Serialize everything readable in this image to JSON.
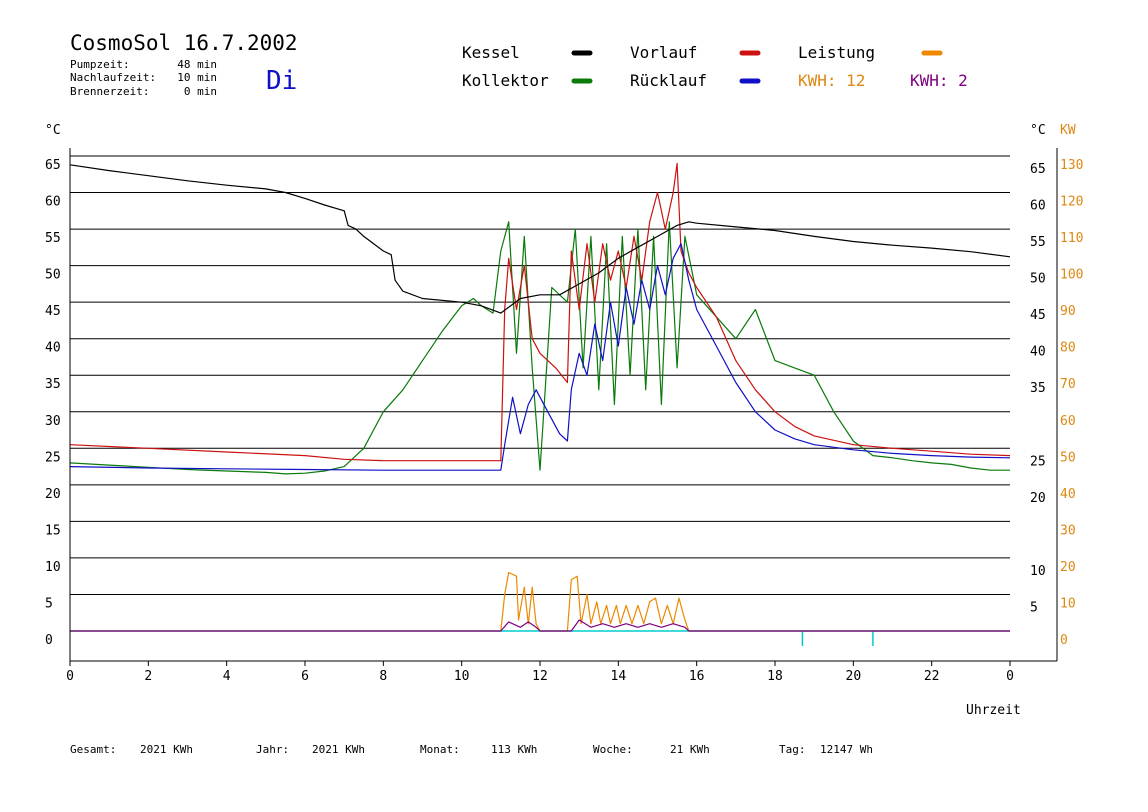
{
  "header": {
    "title": "CosmoSol 16.7.2002",
    "day": "Di",
    "info": [
      {
        "label": "Pumpzeit:",
        "value": "48 min"
      },
      {
        "label": "Nachlaufzeit:",
        "value": "10 min"
      },
      {
        "label": "Brennerzeit:",
        "value": "0 min"
      }
    ]
  },
  "legend": {
    "kessel": "Kessel",
    "kollektor": "Kollektor",
    "vorlauf": "Vorlauf",
    "ruecklauf": "Rücklauf",
    "leistung": "Leistung",
    "kwh1": "KWH: 12",
    "kwh2": "KWH: 2"
  },
  "axes": {
    "left_unit": "°C",
    "right_unit_c": "°C",
    "right_unit_kw": "KW",
    "xlabel": "Uhrzeit"
  },
  "colors": {
    "kessel": "#000000",
    "kollektor": "#0a7a0a",
    "vorlauf": "#cc1111",
    "ruecklauf": "#1010c8",
    "leistung": "#ee8800",
    "kwh2": "#800080",
    "baseline": "#00cccc",
    "orange_text": "#dd8811",
    "day": "#1010c8"
  },
  "footer": [
    {
      "label": "Gesamt:",
      "value": "2021 KWh"
    },
    {
      "label": "Jahr:",
      "value": "2021 KWh"
    },
    {
      "label": "Monat:",
      "value": "113 KWh"
    },
    {
      "label": "Woche:",
      "value": "21 KWh"
    },
    {
      "label": "Tag:",
      "value": "12147 Wh"
    }
  ],
  "chart_data": {
    "type": "line",
    "xlabel": "Uhrzeit",
    "ylabel": "°C",
    "y2label": "KW",
    "xlim": [
      0,
      24
    ],
    "ylim": [
      0,
      65
    ],
    "y2lim": [
      0,
      130
    ],
    "x_ticks": [
      "0",
      "2",
      "4",
      "6",
      "8",
      "10",
      "12",
      "14",
      "16",
      "18",
      "20",
      "22",
      "0"
    ],
    "y_ticks_left": [
      0,
      5,
      10,
      15,
      20,
      25,
      30,
      35,
      40,
      45,
      50,
      55,
      60,
      65
    ],
    "y_ticks_right_c": [
      5,
      10,
      20,
      25,
      35,
      40,
      45,
      50,
      55,
      60,
      65
    ],
    "y_ticks_right_kw": [
      0,
      10,
      20,
      30,
      40,
      50,
      60,
      70,
      80,
      90,
      100,
      110,
      120,
      130
    ],
    "grid": true,
    "series": [
      {
        "name": "Kessel",
        "x": [
          0,
          1,
          2,
          3,
          4,
          5,
          5.5,
          6,
          6.5,
          7,
          7.1,
          7.3,
          7.5,
          8,
          8.2,
          8.3,
          8.5,
          9,
          10,
          10.5,
          11,
          11.5,
          12,
          12.5,
          13,
          13.5,
          14,
          14.5,
          15,
          15.5,
          15.8,
          16,
          17,
          18,
          19,
          20,
          21,
          22,
          23,
          24
        ],
        "y": [
          63.8,
          63,
          62.3,
          61.6,
          61,
          60.5,
          60,
          59.2,
          58.3,
          57.5,
          55.5,
          55,
          54,
          52,
          51.5,
          48,
          46.5,
          45.5,
          45,
          44.5,
          43.5,
          45.5,
          46,
          46,
          47.5,
          49,
          51,
          52.5,
          54,
          55.5,
          56,
          55.8,
          55.3,
          54.8,
          54,
          53.3,
          52.8,
          52.4,
          51.9,
          51.2
        ]
      },
      {
        "name": "Kollektor",
        "x": [
          0,
          1,
          2,
          3,
          4,
          5,
          5.5,
          6,
          6.5,
          7,
          7.5,
          8,
          8.5,
          9,
          9.5,
          10,
          10.3,
          10.5,
          10.8,
          11,
          11.2,
          11.4,
          11.6,
          11.8,
          12,
          12.3,
          12.7,
          12.9,
          13.1,
          13.3,
          13.5,
          13.7,
          13.9,
          14.1,
          14.3,
          14.5,
          14.7,
          14.9,
          15.1,
          15.3,
          15.5,
          15.7,
          16,
          16.5,
          17,
          17.5,
          18,
          18.5,
          19,
          19.5,
          20,
          20.5,
          21,
          21.5,
          22,
          22.5,
          23,
          23.5,
          24
        ],
        "y": [
          23,
          22.7,
          22.4,
          22.1,
          21.9,
          21.7,
          21.5,
          21.6,
          21.9,
          22.5,
          25,
          30,
          33,
          37,
          41,
          44.5,
          45.5,
          44.5,
          43.5,
          52,
          56,
          38,
          54,
          36,
          22,
          47,
          45,
          55,
          36,
          54,
          33,
          53,
          31,
          54,
          35,
          55,
          33,
          54,
          31,
          56,
          36,
          54,
          46,
          43,
          40,
          44,
          37,
          36,
          35,
          30,
          26,
          24,
          23.7,
          23.3,
          23,
          22.8,
          22.3,
          22,
          22
        ]
      },
      {
        "name": "Vorlauf",
        "x": [
          0,
          2,
          4,
          6,
          7,
          8,
          9,
          10,
          11,
          11.1,
          11.2,
          11.4,
          11.6,
          11.8,
          12,
          12.4,
          12.7,
          12.8,
          13,
          13.2,
          13.4,
          13.6,
          13.8,
          14,
          14.2,
          14.4,
          14.6,
          14.8,
          15,
          15.2,
          15.4,
          15.5,
          15.6,
          15.8,
          16,
          16.5,
          17,
          17.5,
          18,
          18.5,
          19,
          20,
          21,
          22,
          23,
          24
        ],
        "y": [
          25.5,
          25,
          24.5,
          24,
          23.5,
          23.3,
          23.3,
          23.3,
          23.3,
          44,
          51,
          44,
          50,
          40,
          38,
          36,
          34,
          52,
          44,
          53,
          45,
          53,
          48,
          52,
          47,
          54,
          48,
          56,
          60,
          55,
          60,
          64,
          52,
          49,
          47,
          43,
          37,
          33,
          30,
          28,
          26.7,
          25.5,
          25,
          24.6,
          24.2,
          24
        ]
      },
      {
        "name": "Rücklauf",
        "x": [
          0,
          2,
          4,
          6,
          8,
          10,
          11,
          11.1,
          11.3,
          11.5,
          11.7,
          11.9,
          12,
          12.2,
          12.5,
          12.7,
          12.8,
          13,
          13.2,
          13.4,
          13.6,
          13.8,
          14,
          14.2,
          14.4,
          14.6,
          14.8,
          15,
          15.2,
          15.4,
          15.6,
          15.8,
          16,
          16.5,
          17,
          17.5,
          18,
          18.5,
          19,
          20,
          21,
          22,
          23,
          24
        ],
        "y": [
          22.5,
          22.3,
          22.2,
          22.1,
          22,
          22,
          22,
          25.5,
          32,
          27,
          31,
          33,
          32,
          30,
          27,
          26,
          33,
          38,
          35,
          42,
          37,
          45,
          39,
          47,
          42,
          48,
          44,
          50,
          46,
          51,
          53,
          48,
          44,
          39,
          34,
          30,
          27.5,
          26.3,
          25.5,
          24.8,
          24.3,
          24,
          23.8,
          23.7
        ]
      },
      {
        "name": "Leistung",
        "axis": "right",
        "x": [
          0,
          11,
          11.1,
          11.2,
          11.4,
          11.45,
          11.6,
          11.7,
          11.8,
          11.9,
          12,
          12.7,
          12.8,
          12.95,
          13.05,
          13.2,
          13.3,
          13.45,
          13.55,
          13.7,
          13.8,
          13.95,
          14.05,
          14.2,
          14.35,
          14.5,
          14.65,
          14.8,
          14.95,
          15.1,
          15.25,
          15.4,
          15.55,
          15.7,
          15.8,
          24
        ],
        "y": [
          0,
          0,
          10,
          16,
          15,
          3,
          12,
          2,
          12,
          2,
          0,
          0,
          14,
          15,
          2,
          10,
          2,
          8,
          2,
          7,
          2,
          7,
          2,
          7,
          2,
          7,
          2,
          8,
          9,
          2,
          7,
          2,
          9,
          3,
          0,
          0
        ]
      },
      {
        "name": "KWH 2",
        "axis": "right",
        "x": [
          0,
          11,
          11.2,
          11.5,
          11.7,
          11.9,
          12,
          12.8,
          13,
          13.3,
          13.6,
          13.9,
          14.2,
          14.5,
          14.8,
          15.1,
          15.4,
          15.7,
          15.8,
          24
        ],
        "y": [
          0,
          0,
          2.5,
          1,
          2.5,
          1,
          0,
          0,
          3,
          1,
          2,
          1,
          2,
          1,
          2,
          1,
          2,
          1,
          0,
          0
        ]
      }
    ]
  }
}
